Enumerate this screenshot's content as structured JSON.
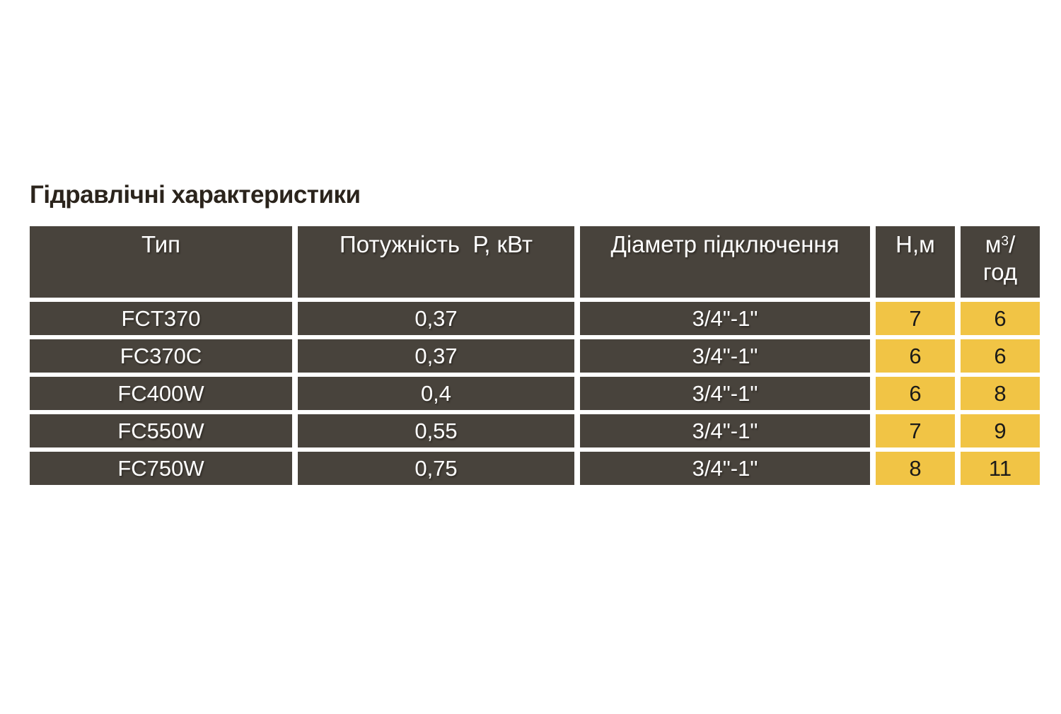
{
  "title": "Гідравлічні характеристики",
  "colors": {
    "background": "#ffffff",
    "cell_dark": "#48433C",
    "cell_yellow": "#F1C445",
    "title_text": "#2B241C",
    "light_text": "#FFFFFF",
    "dark_text": "#1C1B19"
  },
  "table": {
    "headers": {
      "type": "Тип",
      "power": "Потужність  Р, кВт",
      "diameter": "Діаметр підключення",
      "head": "Н,м",
      "flow_base": "м",
      "flow_sup": "3",
      "flow_slash": "/",
      "flow_line2": "год"
    },
    "rows": [
      {
        "type": "FCT370",
        "power": "0,37",
        "diameter": "3/4\"-1\"",
        "head": "7",
        "flow": "6"
      },
      {
        "type": "FC370C",
        "power": "0,37",
        "diameter": "3/4\"-1\"",
        "head": "6",
        "flow": "6"
      },
      {
        "type": "FC400W",
        "power": "0,4",
        "diameter": "3/4\"-1\"",
        "head": "6",
        "flow": "8"
      },
      {
        "type": "FC550W",
        "power": "0,55",
        "diameter": "3/4\"-1\"",
        "head": "7",
        "flow": "9"
      },
      {
        "type": "FC750W",
        "power": "0,75",
        "diameter": "3/4\"-1\"",
        "head": "8",
        "flow": "11"
      }
    ]
  }
}
